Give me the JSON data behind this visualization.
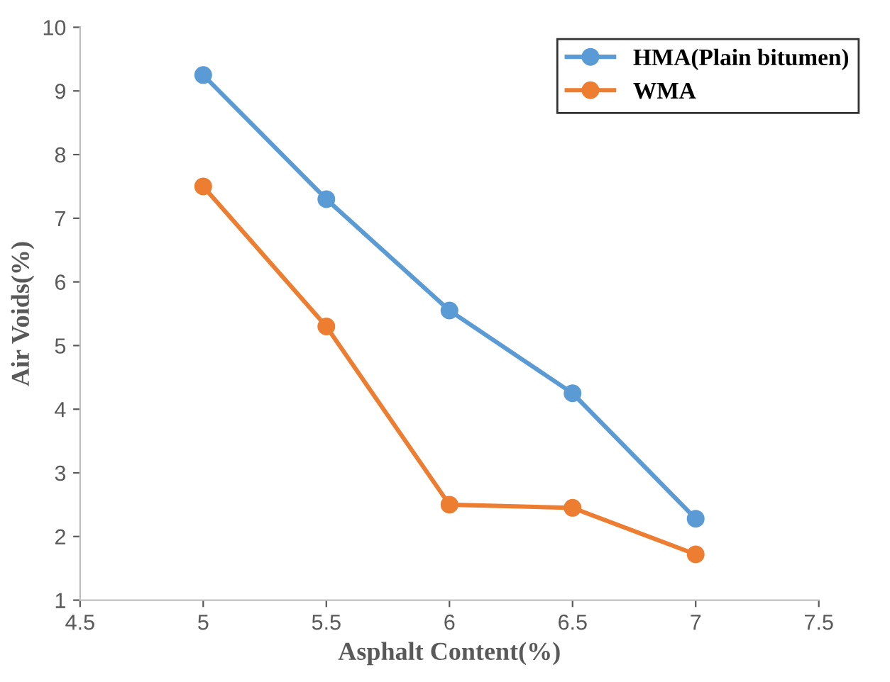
{
  "chart_data": {
    "type": "line",
    "xlabel": "Asphalt Content(%)",
    "ylabel": "Air Voids(%)",
    "x": [
      5,
      5.5,
      6,
      6.5,
      7
    ],
    "series": [
      {
        "name": "HMA(Plain bitumen)",
        "color": "#5b9bd5",
        "values": [
          9.25,
          7.3,
          5.55,
          4.25,
          2.28
        ]
      },
      {
        "name": "WMA",
        "color": "#ed7d31",
        "values": [
          7.5,
          5.3,
          2.5,
          2.45,
          1.72
        ]
      }
    ],
    "xlim": [
      4.5,
      7.5
    ],
    "xticks": [
      4.5,
      5,
      5.5,
      6,
      6.5,
      7,
      7.5
    ],
    "ylim": [
      1,
      10
    ],
    "yticks": [
      1,
      2,
      3,
      4,
      5,
      6,
      7,
      8,
      9,
      10
    ],
    "grid": false,
    "legend": "top right",
    "marker": "circle",
    "line_style": "solid"
  }
}
